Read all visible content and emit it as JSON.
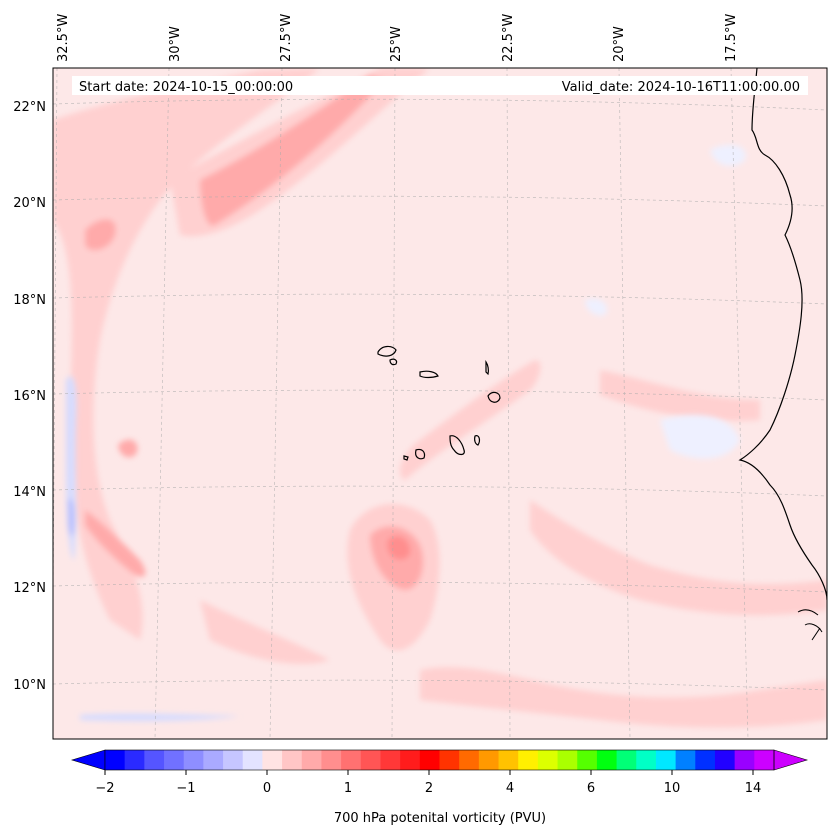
{
  "map": {
    "start_date_label": "Start date: 2024-10-15_00:00:00",
    "valid_date_label": "Valid_date: 2024-10-16T11:00:00.00",
    "lon_labels": [
      "32.5°W",
      "30°W",
      "27.5°W",
      "25°W",
      "22.5°W",
      "20°W",
      "17.5°W"
    ],
    "lat_labels": [
      "22°N",
      "20°N",
      "18°N",
      "16°N",
      "14°N",
      "12°N",
      "10°N"
    ],
    "background_color": "#fde8e8"
  },
  "colorbar": {
    "title": "700 hPa potenital vorticity (PVU)",
    "tick_labels": [
      "−2",
      "−1",
      "0",
      "1",
      "2",
      "4",
      "6",
      "10",
      "14"
    ],
    "colors": [
      "#0000ff",
      "#2a2aff",
      "#5555ff",
      "#7171ff",
      "#8e8eff",
      "#aaaaff",
      "#c6c6ff",
      "#e3e3ff",
      "#ffe3e3",
      "#ffc6c6",
      "#ffaaaa",
      "#ff8e8e",
      "#ff7171",
      "#ff5555",
      "#ff3838",
      "#ff1c1c",
      "#ff0000",
      "#ff3300",
      "#ff6a00",
      "#ff9900",
      "#ffc200",
      "#fff000",
      "#dcff00",
      "#aaff00",
      "#55ff00",
      "#00ff10",
      "#00ff77",
      "#00ffc6",
      "#00e8ff",
      "#0080ff",
      "#0030ff",
      "#2200ff",
      "#9900ff",
      "#cc00ff"
    ],
    "under_color": "#0000ff",
    "over_color": "#cc00ff"
  }
}
